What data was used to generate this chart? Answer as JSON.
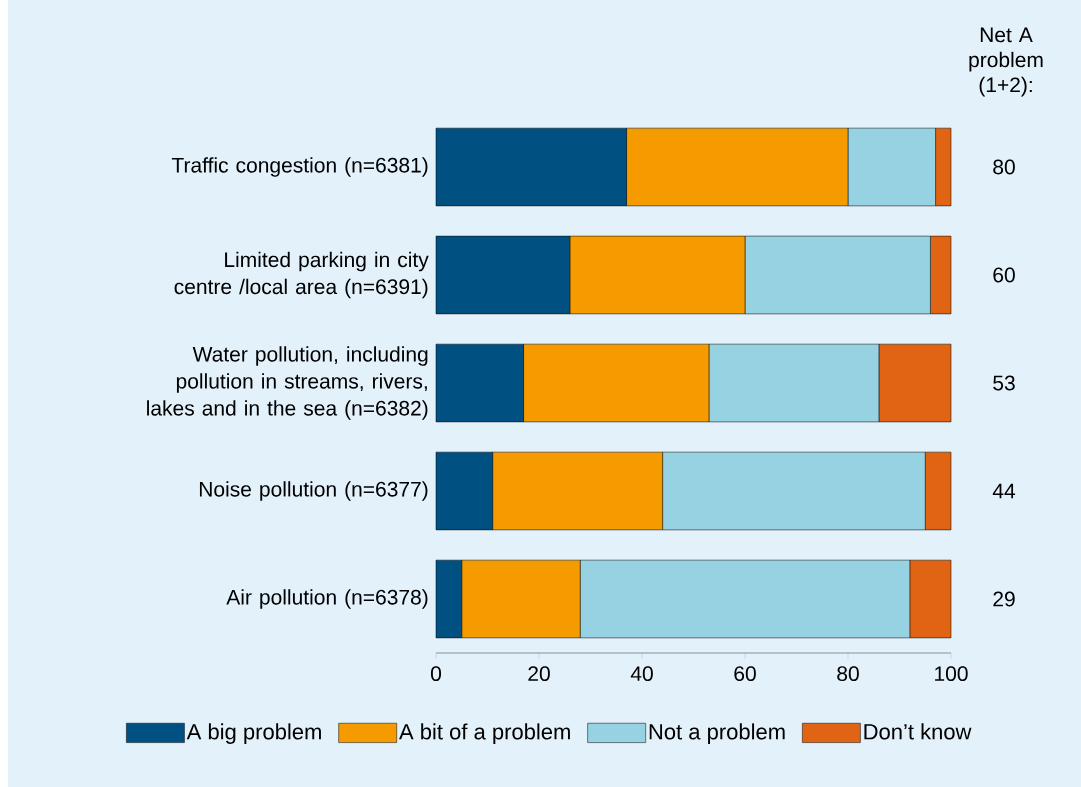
{
  "chart_data": {
    "type": "bar",
    "orientation": "horizontal",
    "stacked": true,
    "categories": [
      "Traffic congestion (n=6381)",
      "Limited parking in city centre /local area (n=6391)",
      "Water pollution, including pollution in streams, rivers, lakes and in the sea (n=6382)",
      "Noise pollution (n=6377)",
      "Air pollution (n=6378)"
    ],
    "series": [
      {
        "name": "A big problem",
        "color": "#005082",
        "values": [
          37,
          26,
          17,
          11,
          5
        ]
      },
      {
        "name": "A bit of a problem",
        "color": "#f59b00",
        "values": [
          43,
          34,
          36,
          33,
          23
        ]
      },
      {
        "name": "Not a problem",
        "color": "#96d2e1",
        "values": [
          17,
          36,
          33,
          51,
          64
        ]
      },
      {
        "name": "Don’t know",
        "color": "#e06414",
        "values": [
          3,
          4,
          14,
          5,
          8
        ]
      }
    ],
    "xlim": [
      0,
      100
    ],
    "xticks": [
      0,
      20,
      40,
      60,
      80,
      100
    ],
    "legend": "bottom",
    "grid": false,
    "annotations": [
      "Net A problem (1+2):",
      "80",
      "60",
      "53",
      "44",
      "29"
    ]
  }
}
